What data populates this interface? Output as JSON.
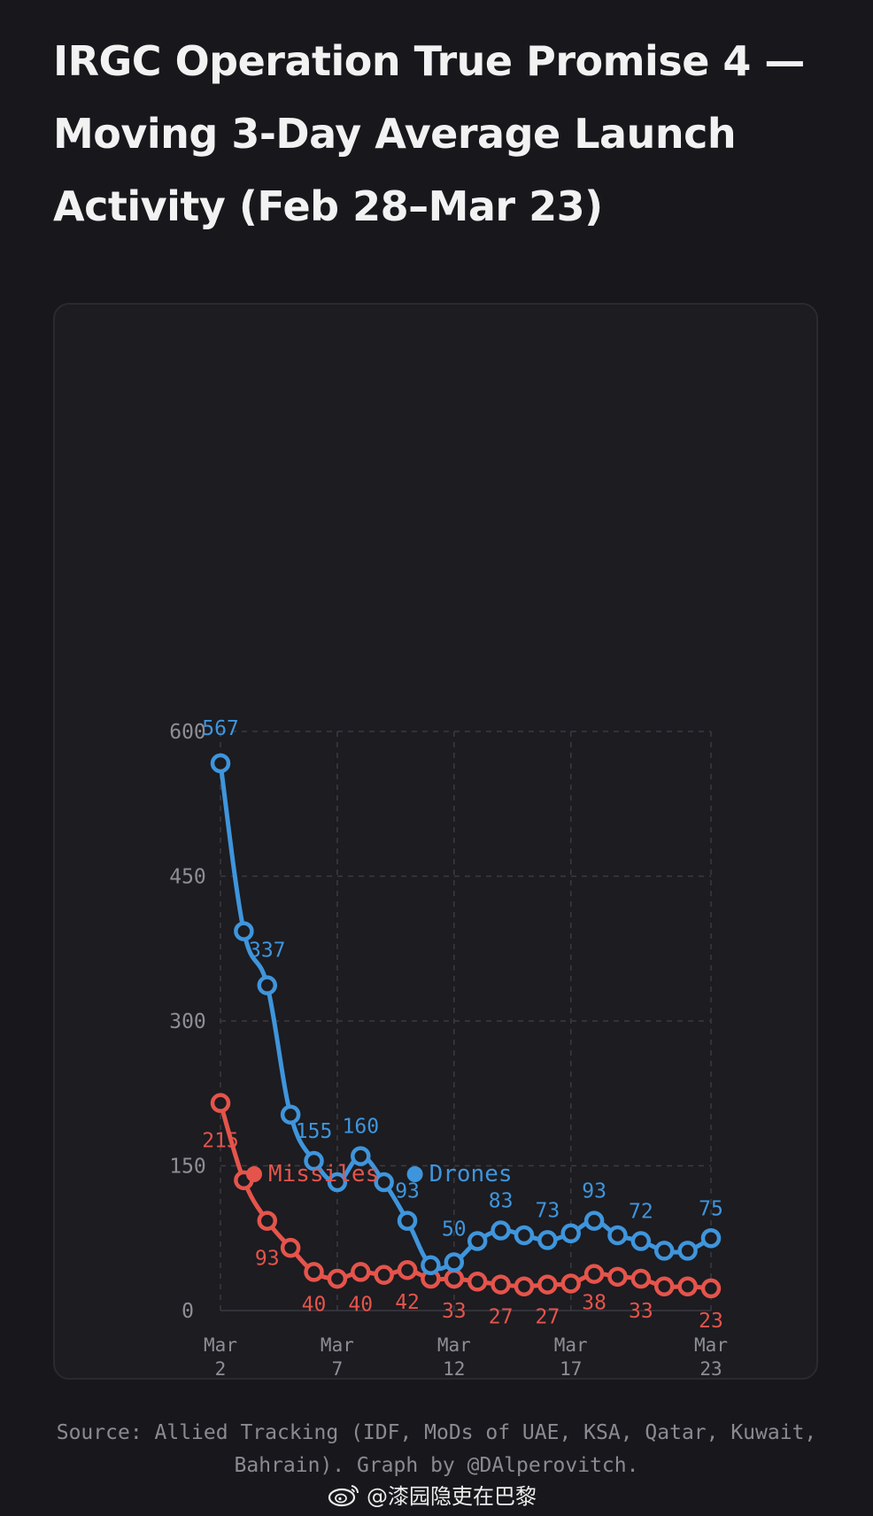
{
  "title": "IRGC Operation True Promise 4 — Moving 3-Day Average Launch Activity (Feb 28–Mar 23)",
  "source": "Source: Allied Tracking (IDF, MoDs of UAE, KSA, Qatar, Kuwait, Bahrain). Graph by @DAlperovitch.",
  "watermark": "@漆园隐吏在巴黎",
  "colors": {
    "missiles": "#e5544b",
    "drones": "#3f95dc",
    "grid": "#3a3a42",
    "axis_text": "#8e8e96",
    "background": "#18181c"
  },
  "chart_data": {
    "type": "line",
    "title": "IRGC Operation True Promise 4 — Moving 3-Day Average Launch Activity (Feb 28–Mar 23)",
    "x": [
      2,
      3,
      4,
      5,
      6,
      7,
      8,
      9,
      10,
      11,
      12,
      13,
      14,
      15,
      16,
      17,
      18,
      19,
      20,
      21,
      22,
      23
    ],
    "x_tick_labels": [
      {
        "x": 2,
        "month": "Mar",
        "day": "2"
      },
      {
        "x": 7,
        "month": "Mar",
        "day": "7"
      },
      {
        "x": 12,
        "month": "Mar",
        "day": "12"
      },
      {
        "x": 17,
        "month": "Mar",
        "day": "17"
      },
      {
        "x": 23,
        "month": "Mar",
        "day": "23"
      }
    ],
    "y_ticks": [
      0,
      150,
      300,
      450,
      600
    ],
    "ylim": [
      0,
      600
    ],
    "xlabel": "",
    "ylabel": "",
    "grid": true,
    "legend": "bottom",
    "series": [
      {
        "name": "Missiles",
        "values": [
          215,
          135,
          93,
          65,
          40,
          33,
          40,
          37,
          42,
          33,
          33,
          30,
          27,
          25,
          27,
          28,
          38,
          35,
          33,
          25,
          25,
          23
        ],
        "labels": [
          {
            "i": 0,
            "text": "215"
          },
          {
            "i": 2,
            "text": "93"
          },
          {
            "i": 4,
            "text": "40"
          },
          {
            "i": 6,
            "text": "40"
          },
          {
            "i": 8,
            "text": "42"
          },
          {
            "i": 10,
            "text": "33"
          },
          {
            "i": 12,
            "text": "27"
          },
          {
            "i": 14,
            "text": "27"
          },
          {
            "i": 16,
            "text": "38"
          },
          {
            "i": 18,
            "text": "33"
          },
          {
            "i": 21,
            "text": "23"
          }
        ]
      },
      {
        "name": "Drones",
        "values": [
          567,
          393,
          337,
          203,
          155,
          133,
          160,
          133,
          93,
          47,
          50,
          72,
          83,
          78,
          73,
          80,
          93,
          78,
          72,
          62,
          62,
          75
        ],
        "labels": [
          {
            "i": 0,
            "text": "567"
          },
          {
            "i": 2,
            "text": "337"
          },
          {
            "i": 4,
            "text": "155"
          },
          {
            "i": 6,
            "text": "160"
          },
          {
            "i": 8,
            "text": "93"
          },
          {
            "i": 10,
            "text": "50"
          },
          {
            "i": 12,
            "text": "83"
          },
          {
            "i": 14,
            "text": "73"
          },
          {
            "i": 16,
            "text": "93"
          },
          {
            "i": 18,
            "text": "72"
          },
          {
            "i": 21,
            "text": "75"
          }
        ]
      }
    ]
  }
}
